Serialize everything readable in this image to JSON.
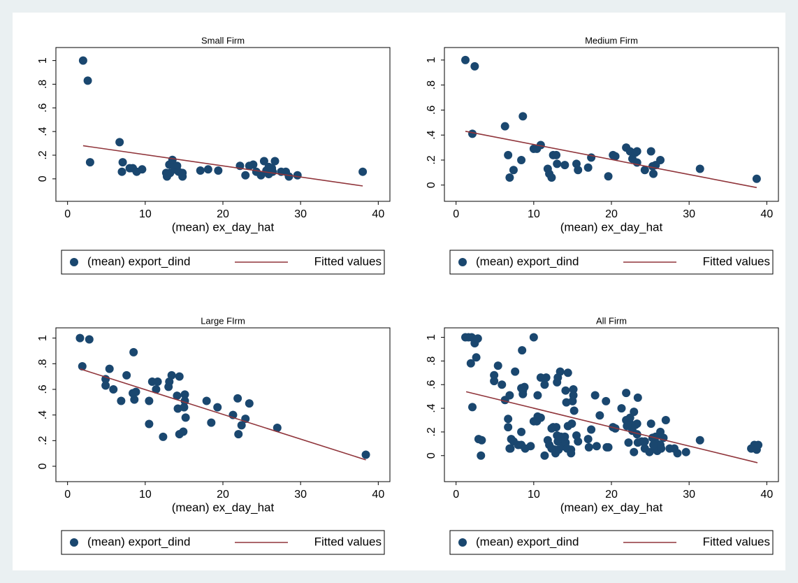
{
  "chart_data": [
    {
      "type": "scatter",
      "title": "Small Firm",
      "x_label": "(mean) ex_day_hat",
      "xlim": [
        -1.5,
        41.5
      ],
      "ylim": [
        -0.19,
        1.11
      ],
      "xticks": [
        0,
        10,
        20,
        30,
        40
      ],
      "yticks": [
        0,
        {
          "value": 0.2,
          "label": ".2"
        },
        {
          "value": 0.4,
          "label": ".4"
        },
        {
          "value": 0.6,
          "label": ".6"
        },
        {
          "value": 0.8,
          "label": ".8"
        },
        1
      ],
      "series": [
        {
          "name": "(mean) export_dind",
          "style": "markers",
          "color": "#1a476f",
          "x": [
            2.0,
            2.6,
            2.9,
            6.7,
            7.1,
            7.0,
            8.0,
            8.4,
            8.9,
            9.6,
            12.7,
            12.8,
            13.1,
            13.2,
            13.5,
            13.8,
            14.1,
            14.3,
            14.8,
            14.8,
            17.1,
            18.1,
            19.4,
            22.2,
            22.9,
            23.4,
            23.9,
            24.3,
            24.9,
            25.3,
            25.6,
            25.9,
            25.9,
            26.3,
            26.7,
            26.4,
            27.5,
            28.1,
            28.5,
            29.6,
            38.0
          ],
          "values": [
            1.0,
            0.83,
            0.14,
            0.31,
            0.14,
            0.06,
            0.09,
            0.09,
            0.06,
            0.08,
            0.05,
            0.02,
            0.12,
            0.05,
            0.16,
            0.08,
            0.11,
            0.06,
            0.05,
            0.02,
            0.07,
            0.08,
            0.07,
            0.11,
            0.03,
            0.11,
            0.12,
            0.06,
            0.03,
            0.15,
            0.07,
            0.1,
            0.04,
            0.09,
            0.15,
            0.06,
            0.06,
            0.06,
            0.02,
            0.03,
            0.06
          ]
        },
        {
          "name": "Fitted values",
          "style": "line",
          "color": "#90353b",
          "x": [
            2.0,
            38.0
          ],
          "values": [
            0.28,
            -0.06
          ]
        }
      ]
    },
    {
      "type": "scatter",
      "title": "Medium Firm",
      "x_label": "(mean) ex_day_hat",
      "xlim": [
        -1.5,
        41.5
      ],
      "ylim": [
        -0.13,
        1.1
      ],
      "xticks": [
        0,
        10,
        20,
        30,
        40
      ],
      "yticks": [
        0,
        {
          "value": 0.2,
          "label": ".2"
        },
        {
          "value": 0.4,
          "label": ".4"
        },
        {
          "value": 0.6,
          "label": ".6"
        },
        {
          "value": 0.8,
          "label": ".8"
        },
        1
      ],
      "series": [
        {
          "name": "(mean) export_dind",
          "style": "markers",
          "color": "#1a476f",
          "x": [
            1.2,
            2.4,
            2.1,
            6.3,
            6.7,
            6.9,
            7.4,
            8.4,
            8.6,
            10.0,
            10.4,
            10.9,
            11.8,
            12.0,
            12.3,
            12.5,
            12.9,
            13.0,
            14.0,
            15.5,
            15.7,
            17.0,
            17.4,
            19.6,
            20.2,
            20.5,
            21.9,
            22.4,
            22.7,
            23.1,
            23.3,
            23.3,
            24.3,
            25.1,
            25.3,
            25.4,
            25.7,
            26.3,
            31.4,
            38.7
          ],
          "values": [
            1.0,
            0.95,
            0.41,
            0.47,
            0.24,
            0.06,
            0.12,
            0.2,
            0.55,
            0.29,
            0.29,
            0.32,
            0.13,
            0.09,
            0.06,
            0.24,
            0.24,
            0.17,
            0.16,
            0.17,
            0.12,
            0.14,
            0.22,
            0.07,
            0.24,
            0.23,
            0.3,
            0.27,
            0.21,
            0.26,
            0.27,
            0.18,
            0.12,
            0.27,
            0.15,
            0.09,
            0.16,
            0.2,
            0.13,
            0.05
          ]
        },
        {
          "name": "Fitted values",
          "style": "line",
          "color": "#90353b",
          "x": [
            1.2,
            38.7
          ],
          "values": [
            0.43,
            -0.02
          ]
        }
      ]
    },
    {
      "type": "scatter",
      "title": "Large FIrm",
      "x_label": "(mean) ex_day_hat",
      "xlim": [
        -1.5,
        41.5
      ],
      "ylim": [
        -0.12,
        1.08
      ],
      "xticks": [
        0,
        10,
        20,
        30,
        40
      ],
      "yticks": [
        0,
        {
          "value": 0.2,
          "label": ".2"
        },
        {
          "value": 0.4,
          "label": ".4"
        },
        {
          "value": 0.6,
          "label": ".6"
        },
        {
          "value": 0.8,
          "label": ".8"
        },
        1
      ],
      "series": [
        {
          "name": "(mean) export_dind",
          "style": "markers",
          "color": "#1a476f",
          "x": [
            1.6,
            1.9,
            2.8,
            4.9,
            4.9,
            5.4,
            5.9,
            6.9,
            7.6,
            8.4,
            8.6,
            8.5,
            8.8,
            10.5,
            10.5,
            10.9,
            11.4,
            11.6,
            12.3,
            13.0,
            13.1,
            13.4,
            14.1,
            14.2,
            14.4,
            14.4,
            14.9,
            15.0,
            15.1,
            15.1,
            15.2,
            17.9,
            18.5,
            19.3,
            21.3,
            21.9,
            22.0,
            22.4,
            22.9,
            23.4,
            27.0,
            38.4
          ],
          "values": [
            1.0,
            0.78,
            0.99,
            0.68,
            0.63,
            0.76,
            0.6,
            0.51,
            0.71,
            0.57,
            0.52,
            0.89,
            0.58,
            0.33,
            0.51,
            0.66,
            0.6,
            0.66,
            0.23,
            0.62,
            0.66,
            0.71,
            0.55,
            0.45,
            0.7,
            0.25,
            0.27,
            0.46,
            0.56,
            0.51,
            0.38,
            0.51,
            0.34,
            0.46,
            0.4,
            0.53,
            0.25,
            0.32,
            0.37,
            0.49,
            0.3,
            0.09
          ]
        },
        {
          "name": "Fitted values",
          "style": "line",
          "color": "#90353b",
          "x": [
            1.6,
            38.4
          ],
          "values": [
            0.76,
            0.05
          ]
        }
      ]
    },
    {
      "type": "scatter",
      "title": "All Firm",
      "x_label": "(mean) ex_day_hat",
      "xlim": [
        -1.5,
        41.5
      ],
      "ylim": [
        -0.22,
        1.08
      ],
      "xticks": [
        0,
        10,
        20,
        30,
        40
      ],
      "yticks": [
        0,
        {
          "value": 0.2,
          "label": ".2"
        },
        {
          "value": 0.4,
          "label": ".4"
        },
        {
          "value": 0.6,
          "label": ".6"
        },
        {
          "value": 0.8,
          "label": ".8"
        },
        1
      ],
      "series": [
        {
          "name": "(mean) export_dind",
          "style": "markers",
          "color": "#1a476f",
          "x": [
            2.0,
            2.6,
            2.9,
            6.7,
            7.1,
            7.0,
            8.0,
            8.4,
            8.9,
            9.6,
            12.7,
            12.8,
            13.1,
            13.2,
            13.5,
            13.8,
            14.1,
            14.3,
            14.8,
            14.8,
            17.1,
            18.1,
            19.4,
            22.2,
            22.9,
            23.4,
            23.9,
            24.3,
            24.9,
            25.3,
            25.6,
            25.9,
            25.9,
            26.3,
            26.7,
            26.4,
            27.5,
            28.1,
            28.5,
            29.6,
            38.0,
            1.2,
            2.4,
            2.1,
            6.3,
            6.7,
            6.9,
            7.4,
            8.4,
            8.6,
            10.0,
            10.4,
            10.9,
            11.8,
            12.0,
            12.3,
            12.5,
            12.9,
            13.0,
            14.0,
            15.5,
            15.7,
            17.0,
            17.4,
            19.6,
            20.2,
            20.5,
            21.9,
            22.4,
            22.7,
            23.1,
            23.3,
            23.3,
            24.3,
            25.1,
            25.3,
            25.4,
            25.7,
            26.3,
            31.4,
            38.7,
            1.6,
            1.9,
            2.8,
            4.9,
            4.9,
            5.4,
            5.9,
            6.9,
            7.6,
            8.4,
            8.6,
            8.5,
            8.8,
            10.5,
            10.5,
            10.9,
            11.4,
            11.6,
            12.3,
            13.0,
            13.1,
            13.4,
            14.1,
            14.2,
            14.4,
            14.4,
            14.9,
            15.0,
            15.1,
            15.1,
            15.2,
            17.9,
            18.5,
            19.3,
            21.3,
            21.9,
            22.0,
            22.4,
            22.9,
            23.4,
            27.0,
            38.4,
            3.3,
            3.2,
            10.0,
            11.4,
            38.9
          ],
          "values": [
            1.0,
            0.83,
            0.14,
            0.31,
            0.14,
            0.06,
            0.09,
            0.09,
            0.06,
            0.08,
            0.05,
            0.02,
            0.12,
            0.05,
            0.16,
            0.08,
            0.11,
            0.06,
            0.05,
            0.02,
            0.07,
            0.08,
            0.07,
            0.11,
            0.03,
            0.11,
            0.12,
            0.06,
            0.03,
            0.15,
            0.07,
            0.1,
            0.04,
            0.09,
            0.15,
            0.06,
            0.06,
            0.06,
            0.02,
            0.03,
            0.06,
            1.0,
            0.95,
            0.41,
            0.47,
            0.24,
            0.06,
            0.12,
            0.2,
            0.55,
            0.29,
            0.29,
            0.32,
            0.13,
            0.09,
            0.06,
            0.24,
            0.24,
            0.17,
            0.16,
            0.17,
            0.12,
            0.14,
            0.22,
            0.07,
            0.24,
            0.23,
            0.3,
            0.27,
            0.21,
            0.26,
            0.27,
            0.18,
            0.12,
            0.27,
            0.15,
            0.09,
            0.16,
            0.2,
            0.13,
            0.05,
            1.0,
            0.78,
            0.99,
            0.68,
            0.63,
            0.76,
            0.6,
            0.51,
            0.71,
            0.57,
            0.52,
            0.89,
            0.58,
            0.33,
            0.51,
            0.66,
            0.6,
            0.66,
            0.23,
            0.62,
            0.66,
            0.71,
            0.55,
            0.45,
            0.7,
            0.25,
            0.27,
            0.46,
            0.56,
            0.51,
            0.38,
            0.51,
            0.34,
            0.46,
            0.4,
            0.53,
            0.25,
            0.32,
            0.37,
            0.49,
            0.3,
            0.09,
            0.13,
            0.0,
            1.0,
            0.0,
            0.09
          ]
        },
        {
          "name": "Fitted values",
          "style": "line",
          "color": "#90353b",
          "x": [
            1.3,
            38.8
          ],
          "values": [
            0.54,
            -0.06
          ]
        }
      ]
    }
  ]
}
